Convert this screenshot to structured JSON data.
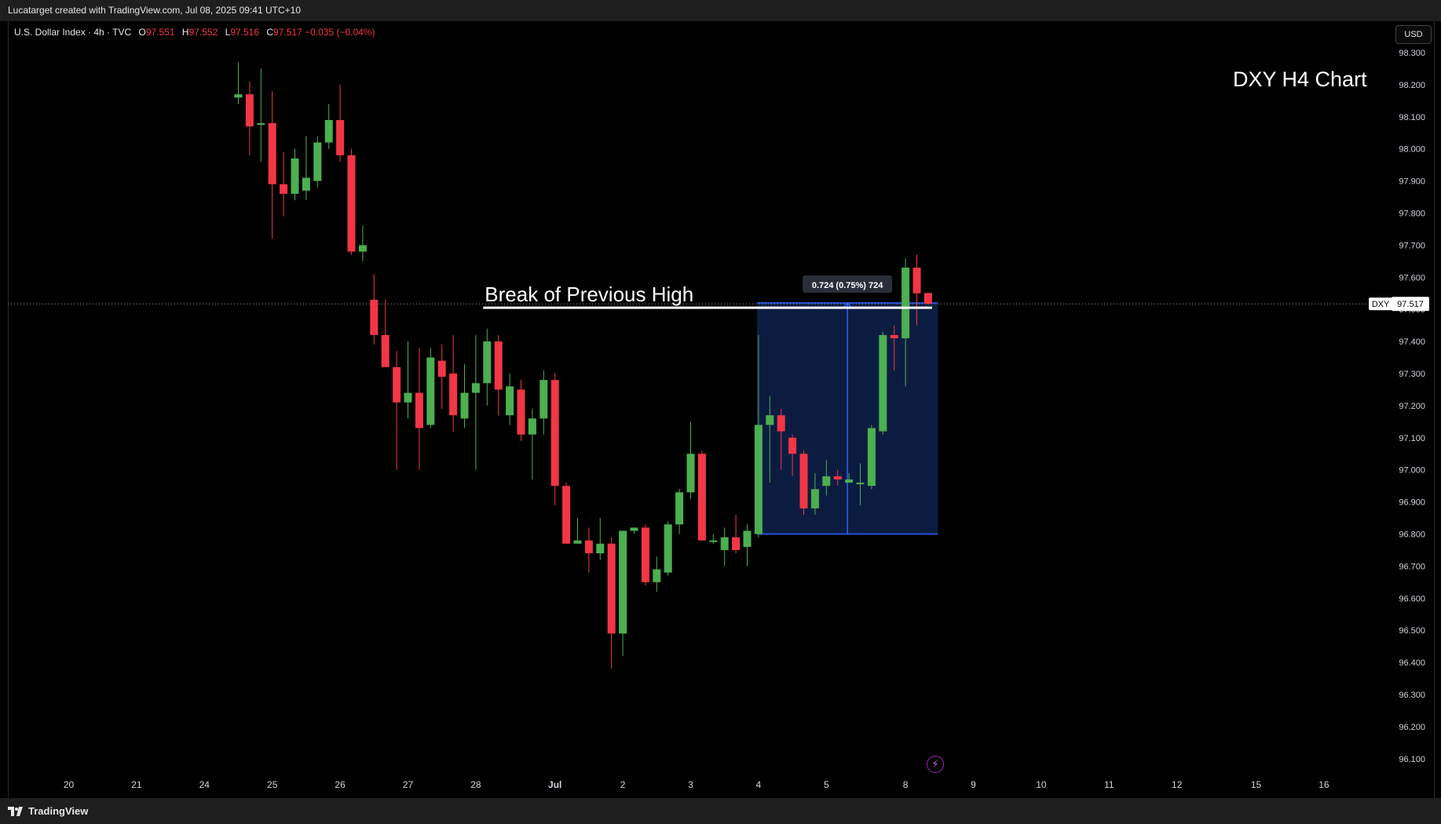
{
  "header": {
    "attribution": "Lucatarget created with TradingView.com, Jul 08, 2025 09:41 UTC+10"
  },
  "legend": {
    "symbol": "U.S. Dollar Index · 4h · TVC",
    "open_label": "O",
    "open": "97.551",
    "high_label": "H",
    "high": "97.552",
    "low_label": "L",
    "low": "97.516",
    "close_label": "C",
    "close": "97.517",
    "change": "−0.035 (−0.04%)"
  },
  "currency": "USD",
  "chart_title": "DXY H4 Chart",
  "annotation": {
    "text": "Break of Previous High",
    "measure_label": "0.724 (0.75%) 724"
  },
  "price_tag": {
    "symbol": "DXY",
    "value": "97.517"
  },
  "footer": {
    "brand": "TradingView"
  },
  "colors": {
    "up": "#4caf50",
    "down": "#f23645",
    "measure_fill": "#0d1f48",
    "measure_line": "#2962ff",
    "grid_text": "#d1d4dc"
  },
  "chart_data": {
    "type": "candlestick",
    "title": "DXY H4 Chart",
    "ylim": [
      96.05,
      98.35
    ],
    "y_ticks": [
      "98.300",
      "98.200",
      "98.100",
      "98.000",
      "97.900",
      "97.800",
      "97.700",
      "97.600",
      "97.500",
      "97.400",
      "97.300",
      "97.200",
      "97.100",
      "97.000",
      "96.900",
      "96.800",
      "96.700",
      "96.600",
      "96.500",
      "96.400",
      "96.300",
      "96.200",
      "96.100"
    ],
    "x_ticks": [
      {
        "label": "20",
        "slot": -15
      },
      {
        "label": "21",
        "slot": -9
      },
      {
        "label": "24",
        "slot": -3
      },
      {
        "label": "25",
        "slot": 3
      },
      {
        "label": "26",
        "slot": 9
      },
      {
        "label": "27",
        "slot": 15
      },
      {
        "label": "28",
        "slot": 21
      },
      {
        "label": "Jul",
        "slot": 28
      },
      {
        "label": "2",
        "slot": 34
      },
      {
        "label": "3",
        "slot": 40
      },
      {
        "label": "4",
        "slot": 46
      },
      {
        "label": "5",
        "slot": 52
      },
      {
        "label": "8",
        "slot": 59
      },
      {
        "label": "9",
        "slot": 65
      },
      {
        "label": "10",
        "slot": 71
      },
      {
        "label": "11",
        "slot": 77
      },
      {
        "label": "12",
        "slot": 83
      },
      {
        "label": "15",
        "slot": 90
      },
      {
        "label": "16",
        "slot": 96
      }
    ],
    "candles": [
      {
        "o": 98.16,
        "h": 98.27,
        "l": 98.14,
        "c": 98.17
      },
      {
        "o": 98.17,
        "h": 98.21,
        "l": 97.98,
        "c": 98.07
      },
      {
        "o": 98.08,
        "h": 98.25,
        "l": 97.96,
        "c": 98.08
      },
      {
        "o": 98.08,
        "h": 98.18,
        "l": 97.72,
        "c": 97.89
      },
      {
        "o": 97.89,
        "h": 97.99,
        "l": 97.79,
        "c": 97.86
      },
      {
        "o": 97.86,
        "h": 98.0,
        "l": 97.84,
        "c": 97.97
      },
      {
        "o": 97.87,
        "h": 98.04,
        "l": 97.84,
        "c": 97.91
      },
      {
        "o": 97.9,
        "h": 98.04,
        "l": 97.88,
        "c": 98.02
      },
      {
        "o": 98.02,
        "h": 98.14,
        "l": 98.0,
        "c": 98.09
      },
      {
        "o": 98.09,
        "h": 98.2,
        "l": 97.96,
        "c": 97.98
      },
      {
        "o": 97.98,
        "h": 98.0,
        "l": 97.67,
        "c": 97.68
      },
      {
        "o": 97.68,
        "h": 97.76,
        "l": 97.65,
        "c": 97.7
      },
      {
        "o": 97.53,
        "h": 97.61,
        "l": 97.39,
        "c": 97.42
      },
      {
        "o": 97.42,
        "h": 97.53,
        "l": 97.32,
        "c": 97.32
      },
      {
        "o": 97.32,
        "h": 97.37,
        "l": 97.0,
        "c": 97.21
      },
      {
        "o": 97.21,
        "h": 97.4,
        "l": 97.16,
        "c": 97.24
      },
      {
        "o": 97.24,
        "h": 97.38,
        "l": 97.0,
        "c": 97.13
      },
      {
        "o": 97.14,
        "h": 97.38,
        "l": 97.13,
        "c": 97.35
      },
      {
        "o": 97.34,
        "h": 97.39,
        "l": 97.19,
        "c": 97.29
      },
      {
        "o": 97.3,
        "h": 97.42,
        "l": 97.12,
        "c": 97.17
      },
      {
        "o": 97.16,
        "h": 97.33,
        "l": 97.13,
        "c": 97.24
      },
      {
        "o": 97.24,
        "h": 97.42,
        "l": 97.0,
        "c": 97.27
      },
      {
        "o": 97.27,
        "h": 97.44,
        "l": 97.2,
        "c": 97.4
      },
      {
        "o": 97.4,
        "h": 97.42,
        "l": 97.17,
        "c": 97.25
      },
      {
        "o": 97.17,
        "h": 97.3,
        "l": 97.14,
        "c": 97.26
      },
      {
        "o": 97.25,
        "h": 97.28,
        "l": 97.09,
        "c": 97.11
      },
      {
        "o": 97.11,
        "h": 97.19,
        "l": 96.97,
        "c": 97.16
      },
      {
        "o": 97.16,
        "h": 97.31,
        "l": 97.11,
        "c": 97.28
      },
      {
        "o": 97.28,
        "h": 97.3,
        "l": 96.89,
        "c": 96.95
      },
      {
        "o": 96.95,
        "h": 96.96,
        "l": 96.77,
        "c": 96.77
      },
      {
        "o": 96.77,
        "h": 96.85,
        "l": 96.77,
        "c": 96.78
      },
      {
        "o": 96.78,
        "h": 96.82,
        "l": 96.68,
        "c": 96.74
      },
      {
        "o": 96.74,
        "h": 96.85,
        "l": 96.72,
        "c": 96.77
      },
      {
        "o": 96.77,
        "h": 96.79,
        "l": 96.38,
        "c": 96.49
      },
      {
        "o": 96.49,
        "h": 96.81,
        "l": 96.42,
        "c": 96.81
      },
      {
        "o": 96.81,
        "h": 96.82,
        "l": 96.8,
        "c": 96.82
      },
      {
        "o": 96.82,
        "h": 96.83,
        "l": 96.64,
        "c": 96.65
      },
      {
        "o": 96.65,
        "h": 96.73,
        "l": 96.62,
        "c": 96.69
      },
      {
        "o": 96.68,
        "h": 96.84,
        "l": 96.67,
        "c": 96.83
      },
      {
        "o": 96.83,
        "h": 96.94,
        "l": 96.8,
        "c": 96.93
      },
      {
        "o": 96.93,
        "h": 97.15,
        "l": 96.91,
        "c": 97.05
      },
      {
        "o": 97.05,
        "h": 97.06,
        "l": 96.78,
        "c": 96.78
      },
      {
        "o": 96.78,
        "h": 96.8,
        "l": 96.77,
        "c": 96.78
      },
      {
        "o": 96.75,
        "h": 96.82,
        "l": 96.7,
        "c": 96.79
      },
      {
        "o": 96.79,
        "h": 96.86,
        "l": 96.74,
        "c": 96.75
      },
      {
        "o": 96.76,
        "h": 96.83,
        "l": 96.7,
        "c": 96.81
      },
      {
        "o": 96.8,
        "h": 97.42,
        "l": 96.79,
        "c": 97.14
      },
      {
        "o": 97.14,
        "h": 97.23,
        "l": 96.96,
        "c": 97.17
      },
      {
        "o": 97.17,
        "h": 97.19,
        "l": 97.0,
        "c": 97.12
      },
      {
        "o": 97.1,
        "h": 97.11,
        "l": 96.98,
        "c": 97.05
      },
      {
        "o": 97.05,
        "h": 97.06,
        "l": 96.86,
        "c": 96.88
      },
      {
        "o": 96.88,
        "h": 96.99,
        "l": 96.86,
        "c": 96.94
      },
      {
        "o": 96.95,
        "h": 97.03,
        "l": 96.92,
        "c": 96.98
      },
      {
        "o": 96.98,
        "h": 97.0,
        "l": 96.95,
        "c": 96.97
      },
      {
        "o": 96.96,
        "h": 96.99,
        "l": 96.96,
        "c": 96.97
      },
      {
        "o": 96.96,
        "h": 97.02,
        "l": 96.89,
        "c": 96.96
      },
      {
        "o": 96.95,
        "h": 97.14,
        "l": 96.94,
        "c": 97.13
      },
      {
        "o": 97.12,
        "h": 97.43,
        "l": 97.11,
        "c": 97.42
      },
      {
        "o": 97.42,
        "h": 97.45,
        "l": 97.31,
        "c": 97.41
      },
      {
        "o": 97.41,
        "h": 97.66,
        "l": 97.26,
        "c": 97.63
      },
      {
        "o": 97.63,
        "h": 97.67,
        "l": 97.45,
        "c": 97.55
      },
      {
        "o": 97.551,
        "h": 97.552,
        "l": 97.516,
        "c": 97.517
      }
    ],
    "measure": {
      "top": 97.52,
      "bottom": 96.8,
      "from_slot": 46,
      "to_slot": 62
    },
    "break_line": {
      "price": 97.505,
      "from_slot": 22,
      "to_slot": 61
    },
    "last_price": 97.517
  }
}
